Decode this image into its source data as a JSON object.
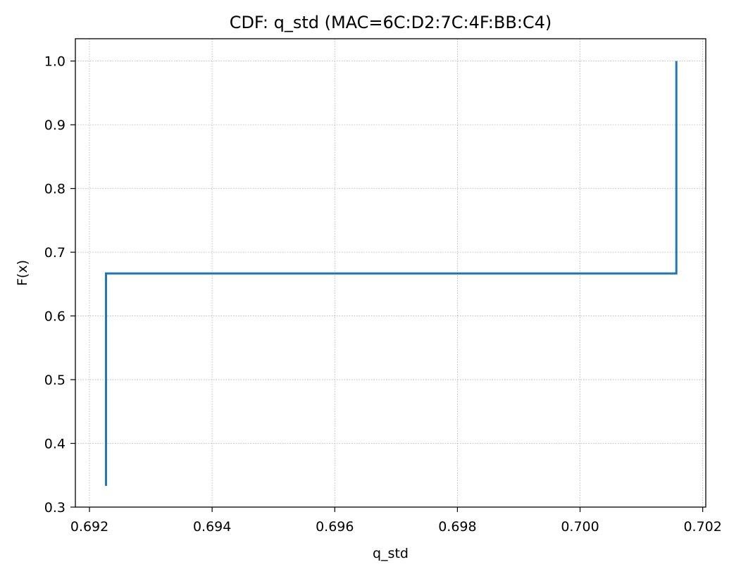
{
  "chart_data": {
    "type": "line",
    "title": "CDF: q_std (MAC=6C:D2:7C:4F:BB:C4)",
    "xlabel": "q_std",
    "ylabel": "F(x)",
    "xlim": [
      0.69177,
      0.70205
    ],
    "ylim": [
      0.3,
      1.035
    ],
    "grid": true,
    "step": "post",
    "xticks": [
      0.692,
      0.694,
      0.696,
      0.698,
      0.7,
      0.702
    ],
    "xtick_labels": [
      "0.692",
      "0.694",
      "0.696",
      "0.698",
      "0.700",
      "0.702"
    ],
    "yticks": [
      0.3,
      0.4,
      0.5,
      0.6,
      0.7,
      0.8,
      0.9,
      1.0
    ],
    "ytick_labels": [
      "0.3",
      "0.4",
      "0.5",
      "0.6",
      "0.7",
      "0.8",
      "0.9",
      "1.0"
    ],
    "series": [
      {
        "color": "#1f77b4",
        "points": [
          {
            "x": 0.69227,
            "y": 0.3333
          },
          {
            "x": 0.69227,
            "y": 0.6667
          },
          {
            "x": 0.70157,
            "y": 0.6667
          },
          {
            "x": 0.70157,
            "y": 1.0
          }
        ]
      }
    ]
  }
}
